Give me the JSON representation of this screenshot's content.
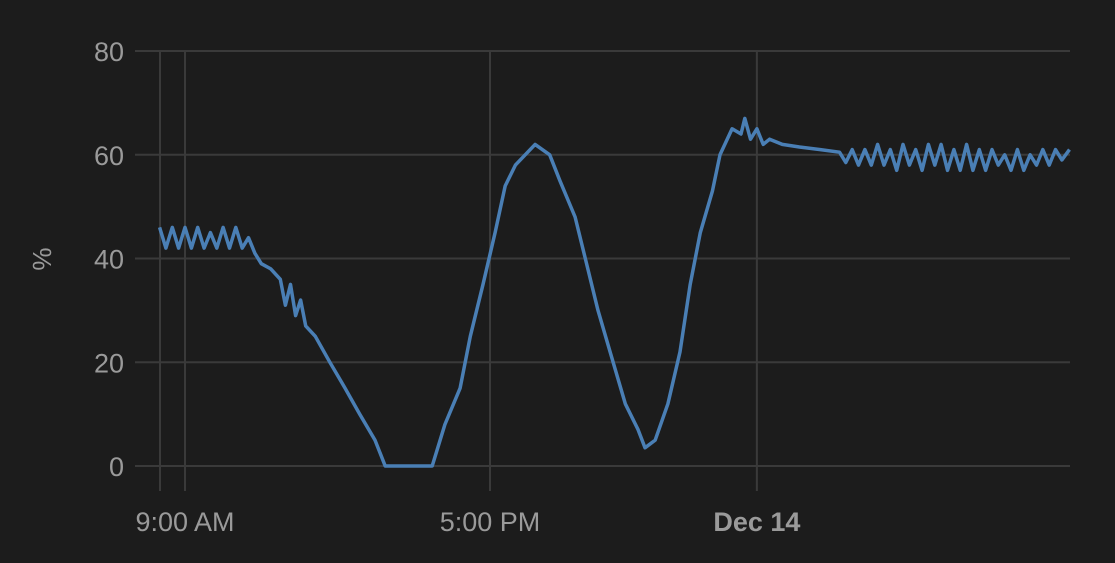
{
  "chart_data": {
    "type": "line",
    "title": "",
    "xlabel": "",
    "ylabel": "%",
    "ylim": [
      0,
      80
    ],
    "yticks": [
      0,
      20,
      40,
      60,
      80
    ],
    "xlim": [
      "12-13 08:20",
      "12-14 08:12"
    ],
    "xticks": [
      {
        "time": "12-13 09:00",
        "label": "9:00 AM",
        "bold": false
      },
      {
        "time": "12-13 17:00",
        "label": "5:00 PM",
        "bold": false
      },
      {
        "time": "12-14 00:00",
        "label": "Dec 14",
        "bold": true
      }
    ],
    "grid": true,
    "colors": {
      "background": "#1c1c1c",
      "grid": "#3a3a3a",
      "line": "#4a7fb5",
      "text": "#9a9a9a"
    },
    "series": [
      {
        "points": [
          [
            "12-13 08:20",
            46
          ],
          [
            "12-13 08:30",
            42
          ],
          [
            "12-13 08:40",
            46
          ],
          [
            "12-13 08:50",
            42
          ],
          [
            "12-13 09:00",
            46
          ],
          [
            "12-13 09:10",
            42
          ],
          [
            "12-13 09:20",
            46
          ],
          [
            "12-13 09:30",
            42
          ],
          [
            "12-13 09:40",
            45
          ],
          [
            "12-13 09:50",
            42
          ],
          [
            "12-13 10:00",
            46
          ],
          [
            "12-13 10:10",
            42
          ],
          [
            "12-13 10:20",
            46
          ],
          [
            "12-13 10:30",
            42
          ],
          [
            "12-13 10:40",
            44
          ],
          [
            "12-13 10:50",
            41
          ],
          [
            "12-13 11:00",
            39
          ],
          [
            "12-13 11:15",
            38
          ],
          [
            "12-13 11:30",
            36
          ],
          [
            "12-13 11:38",
            31
          ],
          [
            "12-13 11:46",
            35
          ],
          [
            "12-13 11:54",
            29
          ],
          [
            "12-13 12:02",
            32
          ],
          [
            "12-13 12:10",
            27
          ],
          [
            "12-13 12:25",
            25
          ],
          [
            "12-13 12:48",
            20
          ],
          [
            "12-13 13:12",
            15
          ],
          [
            "12-13 13:35",
            10
          ],
          [
            "12-13 13:59",
            5
          ],
          [
            "12-13 14:15",
            0
          ],
          [
            "12-13 15:29",
            0
          ],
          [
            "12-13 15:49",
            8
          ],
          [
            "12-13 16:13",
            15
          ],
          [
            "12-13 16:29",
            25
          ],
          [
            "12-13 16:49",
            35
          ],
          [
            "12-13 17:08",
            45
          ],
          [
            "12-13 17:24",
            54
          ],
          [
            "12-13 17:40",
            58
          ],
          [
            "12-13 18:11",
            62
          ],
          [
            "12-13 18:34",
            60
          ],
          [
            "12-13 18:50",
            55
          ],
          [
            "12-13 19:14",
            48
          ],
          [
            "12-13 19:30",
            40
          ],
          [
            "12-13 19:50",
            30
          ],
          [
            "12-13 20:09",
            22
          ],
          [
            "12-13 20:33",
            12
          ],
          [
            "12-13 20:53",
            7
          ],
          [
            "12-13 21:04",
            3.5
          ],
          [
            "12-13 21:20",
            5
          ],
          [
            "12-13 21:40",
            12
          ],
          [
            "12-13 21:59",
            22
          ],
          [
            "12-13 22:15",
            35
          ],
          [
            "12-13 22:31",
            45
          ],
          [
            "12-13 22:50",
            53
          ],
          [
            "12-13 23:02",
            60
          ],
          [
            "12-13 23:21",
            65
          ],
          [
            "12-13 23:35",
            64
          ],
          [
            "12-13 23:41",
            67
          ],
          [
            "12-13 23:50",
            63
          ],
          [
            "12-14 00:00",
            65
          ],
          [
            "12-14 00:10",
            62
          ],
          [
            "12-14 00:20",
            63
          ],
          [
            "12-14 00:40",
            62
          ],
          [
            "12-14 01:07",
            61.5
          ],
          [
            "12-14 01:40",
            61
          ],
          [
            "12-14 02:10",
            60.5
          ],
          [
            "12-14 02:20",
            58.5
          ],
          [
            "12-14 02:30",
            61
          ],
          [
            "12-14 02:40",
            58
          ],
          [
            "12-14 02:50",
            61
          ],
          [
            "12-14 03:00",
            58
          ],
          [
            "12-14 03:10",
            62
          ],
          [
            "12-14 03:20",
            58
          ],
          [
            "12-14 03:30",
            61
          ],
          [
            "12-14 03:40",
            57
          ],
          [
            "12-14 03:50",
            62
          ],
          [
            "12-14 04:00",
            58
          ],
          [
            "12-14 04:10",
            61
          ],
          [
            "12-14 04:20",
            57
          ],
          [
            "12-14 04:30",
            62
          ],
          [
            "12-14 04:40",
            58
          ],
          [
            "12-14 04:50",
            62
          ],
          [
            "12-14 05:00",
            57
          ],
          [
            "12-14 05:10",
            61
          ],
          [
            "12-14 05:20",
            57
          ],
          [
            "12-14 05:30",
            62
          ],
          [
            "12-14 05:40",
            57
          ],
          [
            "12-14 05:50",
            61
          ],
          [
            "12-14 06:00",
            57
          ],
          [
            "12-14 06:10",
            61
          ],
          [
            "12-14 06:20",
            58
          ],
          [
            "12-14 06:30",
            60
          ],
          [
            "12-14 06:40",
            57
          ],
          [
            "12-14 06:50",
            61
          ],
          [
            "12-14 07:00",
            57
          ],
          [
            "12-14 07:10",
            60
          ],
          [
            "12-14 07:20",
            58
          ],
          [
            "12-14 07:30",
            61
          ],
          [
            "12-14 07:40",
            58
          ],
          [
            "12-14 07:50",
            61
          ],
          [
            "12-14 08:00",
            59
          ],
          [
            "12-14 08:12",
            61
          ]
        ]
      }
    ]
  }
}
